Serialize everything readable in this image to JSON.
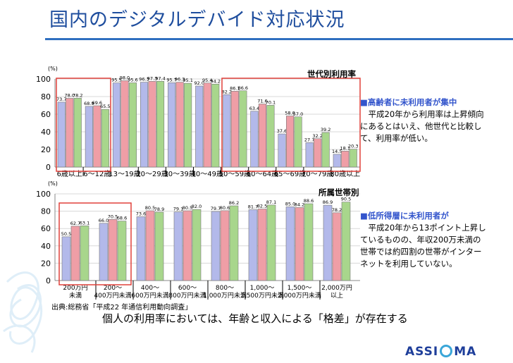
{
  "title": "国内のデジタルデバイド対応状況",
  "charts": [
    {
      "label": "世代別利用率",
      "unit": "(%)",
      "yticks": [
        "0",
        "20",
        "40",
        "60",
        "80",
        "100"
      ],
      "note_head": "■高齢者に未利用者が集中",
      "note_body": "　平成20年から利用率は上昇傾向にあるとはいえ、他世代と比較して、利用率が低い。"
    },
    {
      "label": "所属世帯別",
      "unit": "(%)",
      "yticks": [
        "0",
        "20",
        "40",
        "60",
        "80",
        "100"
      ],
      "note_head": "■低所得層に未利用者が",
      "note_body": "　平成20年から13ポイント上昇しているものの、年収200万未満の世帯では約四割の世帯がインターネットを利用していない。"
    }
  ],
  "chart_data": [
    {
      "type": "bar",
      "title": "世代別利用率",
      "ylabel": "(%)",
      "ylim": [
        0,
        100
      ],
      "categories": [
        "6歳以上",
        "6～12歳",
        "13～19歳",
        "20～29歳",
        "30～39歳",
        "40～49歳",
        "50～59歳",
        "60～64歳",
        "65～69歳",
        "70～79歳",
        "80歳以上"
      ],
      "series": [
        {
          "values": [
            73.7,
            68.9,
            95.5,
            96.3,
            95.7,
            92.0,
            82.2,
            63.4,
            37.6,
            27.7,
            14.5
          ],
          "labels": [
            "73.7",
            "68.9",
            "95.5",
            "96.3",
            "95.7",
            "92.0",
            "82.2",
            "63.4",
            "37.6",
            "27.7",
            "14.5"
          ]
        },
        {
          "values": [
            78.0,
            69.6,
            98.0,
            97.3,
            96.3,
            95.4,
            86.1,
            71.6,
            58.0,
            32.2,
            18.1
          ],
          "labels": [
            "78.0",
            "69.6",
            "98.0",
            "97.3",
            "96.3",
            "95.4",
            "86.1",
            "71.6",
            "58.0",
            "32.2",
            "18.1"
          ]
        },
        {
          "values": [
            78.2,
            65.5,
            95.6,
            97.4,
            95.1,
            94.2,
            86.6,
            70.1,
            57.0,
            39.2,
            20.3
          ],
          "labels": [
            "78.2",
            "65.5",
            "95.6",
            "97.4",
            "95.1",
            "94.2",
            "86.6",
            "70.1",
            "57.0",
            "39.2",
            "20.3"
          ]
        }
      ],
      "colors": [
        "#b3b9ea",
        "#ef9ea6",
        "#a8d68c"
      ]
    },
    {
      "type": "bar",
      "title": "所属世帯別",
      "ylabel": "(%)",
      "ylim": [
        0,
        100
      ],
      "categories": [
        [
          "200万円",
          "未満"
        ],
        [
          "200～",
          "400万円未満"
        ],
        [
          "400～",
          "600万円未満"
        ],
        [
          "600～",
          "800万円未満"
        ],
        [
          "800～",
          "1,000万円未満"
        ],
        [
          "1,000～",
          "1,500万円未満"
        ],
        [
          "1,500～",
          "2,000万円未満"
        ],
        [
          "2,000万円",
          "以上"
        ]
      ],
      "series": [
        {
          "values": [
            50.5,
            66.0,
            73.6,
            79.1,
            79.7,
            81.7,
            85.0,
            86.9
          ],
          "labels": [
            "50.5",
            "66.0",
            "73.6",
            "79.1",
            "79.7",
            "81.7",
            "85.0",
            "86.9"
          ]
        },
        {
          "values": [
            62.7,
            70.5,
            80.5,
            80.5,
            80.6,
            82.5,
            84.2,
            78.2
          ],
          "labels": [
            "62.7",
            "70.5",
            "80.5",
            "80.5",
            "80.6",
            "82.5",
            "84.2",
            "78.2"
          ]
        },
        {
          "values": [
            63.1,
            68.6,
            78.9,
            82.0,
            86.2,
            87.1,
            88.6,
            90.5
          ],
          "labels": [
            "63.1",
            "68.6",
            "78.9",
            "82.0",
            "86.2",
            "87.1",
            "88.6",
            "90.5"
          ]
        }
      ],
      "colors": [
        "#b3b9ea",
        "#ef9ea6",
        "#a8d68c"
      ]
    }
  ],
  "source": "出典:総務省「平成22 年通信利用動向調査」",
  "conclusion": "個人の利用率においては、年齢と収入による「格差」が存在する",
  "logo": {
    "left": "ASSI",
    "right": "MA"
  }
}
